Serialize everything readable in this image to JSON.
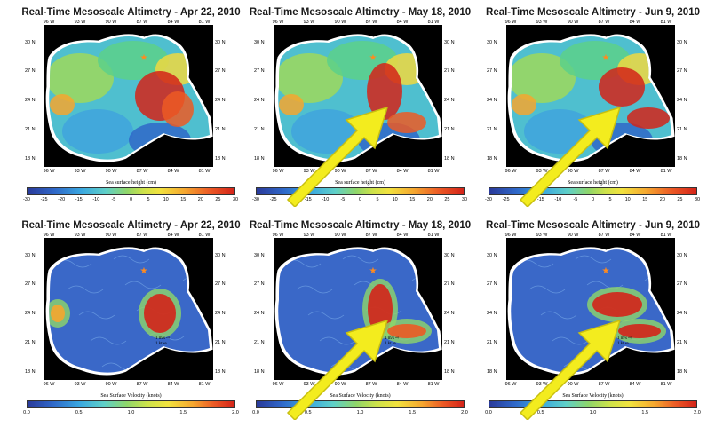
{
  "panels": [
    {
      "title": "Real-Time Mesoscale Altimetry - Apr 22, 2010",
      "colorbar_label": "Sea surface height (cm)",
      "ticks": [
        "-30",
        "-25",
        "-20",
        "-15",
        "-10",
        "-5",
        "0",
        "5",
        "10",
        "15",
        "20",
        "25",
        "30"
      ],
      "field": "ssh"
    },
    {
      "title": "Real-Time Mesoscale Altimetry - May 18, 2010",
      "colorbar_label": "Sea surface height (cm)",
      "ticks": [
        "-30",
        "-25",
        "-20",
        "-15",
        "-10",
        "-5",
        "0",
        "5",
        "10",
        "15",
        "20",
        "25",
        "30"
      ],
      "field": "ssh"
    },
    {
      "title": "Real-Time Mesoscale Altimetry - Jun 9, 2010",
      "colorbar_label": "Sea surface height (cm)",
      "ticks": [
        "-30",
        "-25",
        "-20",
        "-15",
        "-10",
        "-5",
        "0",
        "5",
        "10",
        "15",
        "20",
        "25",
        "30"
      ],
      "field": "ssh"
    },
    {
      "title": "Real-Time Mesoscale Altimetry - Apr 22, 2010",
      "colorbar_label": "Sea Surface Velocity (knots)",
      "ticks": [
        "0.0",
        "0.5",
        "1.0",
        "1.5",
        "2.0"
      ],
      "field": "vel"
    },
    {
      "title": "Real-Time Mesoscale Altimetry - May 18, 2010",
      "colorbar_label": "Sea Surface Velocity (knots)",
      "ticks": [
        "0.0",
        "0.5",
        "1.0",
        "1.5",
        "2.0"
      ],
      "field": "vel"
    },
    {
      "title": "Real-Time Mesoscale Altimetry - Jun 9, 2010",
      "colorbar_label": "Sea Surface Velocity (knots)",
      "ticks": [
        "0.0",
        "0.5",
        "1.0",
        "1.5",
        "2.0"
      ],
      "field": "vel"
    }
  ],
  "lon_labels": [
    "96 W",
    "93 W",
    "90 W",
    "87 W",
    "84 W",
    "81 W"
  ],
  "lat_labels": [
    "30 N",
    "27 N",
    "24 N",
    "21 N",
    "18 N"
  ],
  "velocity_legend": {
    "line1": "1 m/s",
    "line2": "1 kt"
  },
  "colors": {
    "ssh_high": "#d42319",
    "ssh_low": "#2f67c8",
    "land": "#000000",
    "arrow": "#f3ec1e",
    "spill_marker": "#ff8a1e"
  },
  "arrows_on_panels": [
    1,
    2,
    4,
    5
  ]
}
